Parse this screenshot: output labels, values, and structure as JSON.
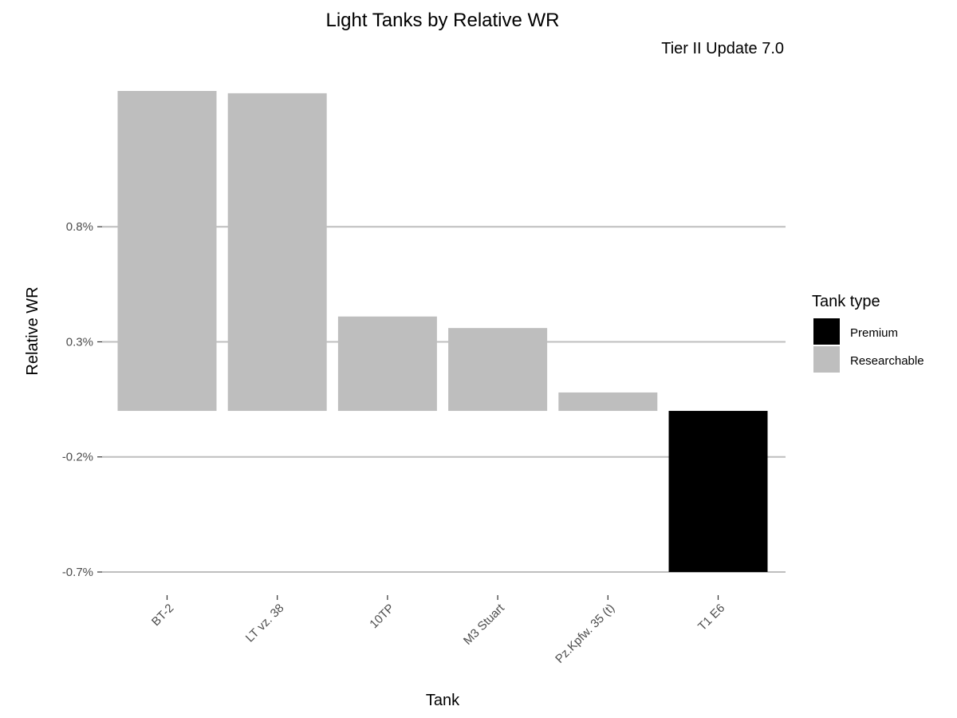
{
  "chart_data": {
    "type": "bar",
    "title": "Light Tanks by Relative WR",
    "subtitle": "Tier II Update 7.0",
    "xlabel": "Tank",
    "ylabel": "Relative WR",
    "categories": [
      "BT-2",
      "LT vz. 38",
      "10TP",
      "M3 Stuart",
      "Pz.Kpfw. 35 (t)",
      "T1 E6"
    ],
    "values": [
      1.39,
      1.38,
      0.41,
      0.36,
      0.08,
      -0.7
    ],
    "bar_type": [
      "Researchable",
      "Researchable",
      "Researchable",
      "Researchable",
      "Researchable",
      "Premium"
    ],
    "y_ticks": [
      -0.7,
      -0.2,
      0.3,
      0.8
    ],
    "y_tick_labels": [
      "-0.7%",
      "-0.2%",
      "0.3%",
      "0.8%"
    ],
    "ylim": [
      -0.7,
      1.39
    ],
    "grid": true,
    "legend": {
      "title": "Tank type",
      "placement": "right",
      "entries": [
        {
          "label": "Premium",
          "color": "#000000"
        },
        {
          "label": "Researchable",
          "color": "#bebebe"
        }
      ]
    }
  }
}
